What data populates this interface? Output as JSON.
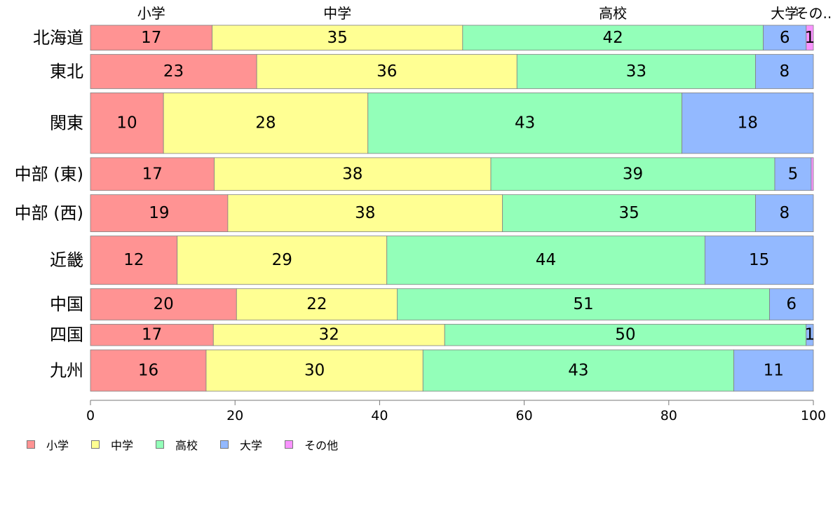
{
  "chart_data": {
    "type": "bar",
    "orientation": "horizontal",
    "stacked": true,
    "categories": [
      "北海道",
      "東北",
      "関東",
      "中部 (東)",
      "中部 (西)",
      "近畿",
      "中国",
      "四国",
      "九州"
    ],
    "category_weights": [
      35,
      48,
      85,
      46,
      52,
      68,
      44,
      30,
      58
    ],
    "series": [
      {
        "name": "小学",
        "color": "#FF9393",
        "values": [
          17,
          23,
          10,
          17,
          19,
          12,
          20,
          17,
          16
        ]
      },
      {
        "name": "中学",
        "color": "#FFFF93",
        "values": [
          35,
          36,
          28,
          38,
          38,
          29,
          22,
          32,
          30
        ]
      },
      {
        "name": "高校",
        "color": "#93FFB9",
        "values": [
          42,
          33,
          43,
          39,
          35,
          44,
          51,
          50,
          43
        ]
      },
      {
        "name": "大学",
        "color": "#93B9FF",
        "values": [
          6,
          8,
          18,
          5,
          8,
          15,
          6,
          1,
          11
        ]
      },
      {
        "name": "その他",
        "color": "#F993FF",
        "values": [
          1,
          0,
          0,
          0.3,
          0,
          0,
          0,
          0,
          0
        ]
      }
    ],
    "data_labels": [
      [
        "17",
        "35",
        "42",
        "6",
        "1"
      ],
      [
        "23",
        "36",
        "33",
        "8",
        ""
      ],
      [
        "10",
        "28",
        "43",
        "18",
        ""
      ],
      [
        "17",
        "38",
        "39",
        "5",
        ""
      ],
      [
        "19",
        "38",
        "35",
        "8",
        ""
      ],
      [
        "12",
        "29",
        "44",
        "15",
        ""
      ],
      [
        "20",
        "22",
        "51",
        "6",
        ""
      ],
      [
        "17",
        "32",
        "50",
        "1",
        ""
      ],
      [
        "16",
        "30",
        "43",
        "11",
        ""
      ]
    ],
    "top_labels": [
      "小学",
      "中学",
      "高校",
      "大学",
      "その.."
    ],
    "xlim": [
      0,
      100
    ],
    "x_ticks": [
      0,
      20,
      40,
      60,
      80,
      100
    ],
    "grid": false,
    "legend_position": "bottom-left"
  }
}
